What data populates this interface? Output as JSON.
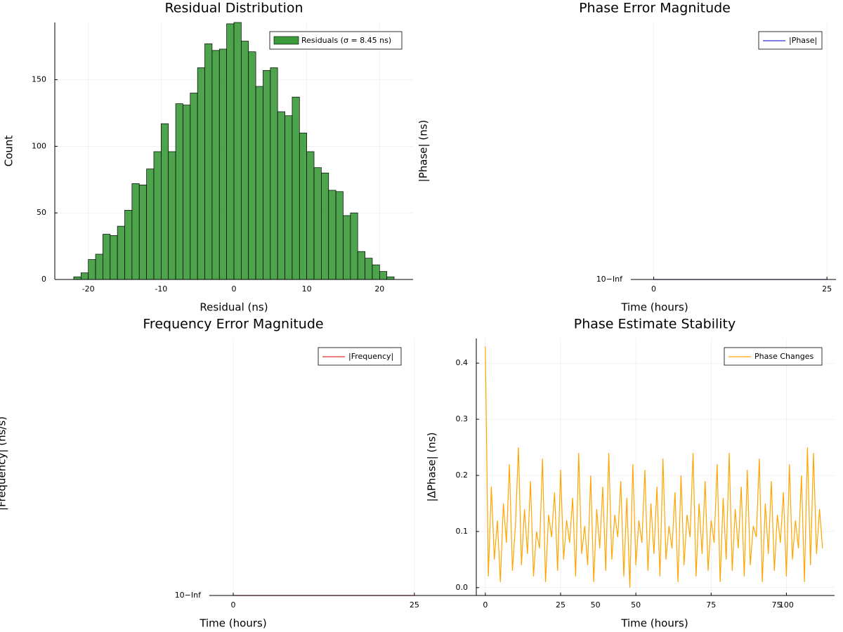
{
  "chart_data": [
    {
      "type": "histogram",
      "title": "Residual Distribution",
      "xlabel": "Residual (ns)",
      "ylabel": "Count",
      "label": "Residuals (σ = 8.45 ns)",
      "color": "#3a9a3a",
      "bins": [
        -22,
        -21,
        -20,
        -19,
        -18,
        -17,
        -16,
        -15,
        -14,
        -13,
        -12,
        -11,
        -10,
        -9,
        -8,
        -7,
        -6,
        -5,
        -4,
        -3,
        -2,
        -1,
        0,
        1,
        2,
        3,
        4,
        5,
        6,
        7,
        8,
        9,
        10,
        11,
        12,
        13,
        14,
        15,
        16,
        17,
        18,
        19,
        20,
        21,
        22
      ],
      "counts": [
        2,
        5,
        15,
        19,
        34,
        33,
        40,
        52,
        72,
        71,
        83,
        96,
        117,
        96,
        132,
        131,
        140,
        159,
        177,
        172,
        173,
        192,
        193,
        179,
        171,
        145,
        157,
        159,
        126,
        123,
        137,
        110,
        96,
        84,
        80,
        67,
        66,
        48,
        50,
        21,
        16,
        11,
        6,
        2
      ],
      "xlim": [
        -24.6,
        24.6
      ],
      "xticks": [
        -20,
        -10,
        0,
        10,
        20
      ],
      "ylim": [
        0,
        193
      ],
      "yticks": [
        0,
        50,
        100,
        150
      ],
      "grid": true
    },
    {
      "type": "line",
      "title": "Phase Error Magnitude",
      "xlabel": "Time (hours)",
      "ylabel": "|Phase| (ns)",
      "yscale": "log",
      "series": [
        {
          "name": "|Phase|",
          "color": "#3030d0",
          "x": [
            0,
            25
          ],
          "values": [
            0,
            0
          ]
        }
      ],
      "xlim": [
        -3.3,
        26.3
      ],
      "xticks": [
        0,
        25
      ],
      "yticks": [
        {
          "value": 0,
          "label": "10−Inf"
        }
      ],
      "grid": true
    },
    {
      "type": "line",
      "title": "Frequency Error Magnitude",
      "xlabel": "Time (hours)",
      "ylabel": "|Frequency| (ns/s)",
      "yscale": "log",
      "series": [
        {
          "name": "|Frequency|",
          "color": "#e03030",
          "x": [
            0,
            25
          ],
          "values": [
            0,
            0
          ]
        }
      ],
      "xlim": [
        -3.3,
        83
      ],
      "xticks": [
        0,
        25,
        50,
        75
      ],
      "yticks": [
        {
          "value": 0,
          "label": "10−Inf"
        }
      ],
      "grid": true
    },
    {
      "type": "line",
      "title": "Phase Estimate Stability",
      "xlabel": "Time (hours)",
      "ylabel": "|ΔPhase| (ns)",
      "series": [
        {
          "name": "Phase Changes",
          "color": "#ffa500",
          "x": [
            0,
            1,
            2,
            3,
            4,
            5,
            6,
            7,
            8,
            9,
            10,
            11,
            12,
            13,
            14,
            15,
            16,
            17,
            18,
            19,
            20,
            21,
            22,
            23,
            24,
            25,
            26,
            27,
            28,
            29,
            30,
            31,
            32,
            33,
            34,
            35,
            36,
            37,
            38,
            39,
            40,
            41,
            42,
            43,
            44,
            45,
            46,
            47,
            48,
            49,
            50,
            51,
            52,
            53,
            54,
            55,
            56,
            57,
            58,
            59,
            60,
            61,
            62,
            63,
            64,
            65,
            66,
            67,
            68,
            69,
            70,
            71,
            72,
            73,
            74,
            75,
            76,
            77,
            78,
            79,
            80,
            81,
            82,
            83,
            84,
            85,
            86,
            87,
            88,
            89,
            90,
            91,
            92,
            93,
            94,
            95,
            96,
            97,
            98,
            99,
            100,
            101,
            102,
            103,
            104,
            105,
            106,
            107,
            108,
            109,
            110,
            111,
            112
          ],
          "values": [
            0.43,
            0.02,
            0.18,
            0.05,
            0.12,
            0.01,
            0.15,
            0.08,
            0.22,
            0.03,
            0.11,
            0.25,
            0.04,
            0.14,
            0.06,
            0.19,
            0.02,
            0.1,
            0.07,
            0.23,
            0.01,
            0.13,
            0.09,
            0.17,
            0.03,
            0.21,
            0.05,
            0.12,
            0.08,
            0.16,
            0.02,
            0.24,
            0.06,
            0.11,
            0.04,
            0.2,
            0.01,
            0.14,
            0.07,
            0.18,
            0.03,
            0.24,
            0.05,
            0.13,
            0.09,
            0.19,
            0.02,
            0.16,
            0.0,
            0.22,
            0.04,
            0.12,
            0.08,
            0.21,
            0.03,
            0.15,
            0.06,
            0.18,
            0.02,
            0.23,
            0.05,
            0.11,
            0.07,
            0.17,
            0.01,
            0.2,
            0.04,
            0.13,
            0.09,
            0.24,
            0.02,
            0.15,
            0.06,
            0.19,
            0.03,
            0.12,
            0.08,
            0.22,
            0.01,
            0.16,
            0.05,
            0.24,
            0.03,
            0.14,
            0.07,
            0.18,
            0.02,
            0.21,
            0.04,
            0.11,
            0.09,
            0.23,
            0.01,
            0.15,
            0.06,
            0.19,
            0.03,
            0.13,
            0.08,
            0.17,
            0.02,
            0.22,
            0.05,
            0.12,
            0.07,
            0.2,
            0.01,
            0.25,
            0.04,
            0.24,
            0.06,
            0.14,
            0.07
          ]
        }
      ],
      "xlim": [
        -3,
        116
      ],
      "xticks": [
        0,
        25,
        50,
        75,
        100
      ],
      "ylim": [
        -0.014,
        0.444
      ],
      "yticks": [
        {
          "value": 0,
          "label": "0.0"
        },
        0.1,
        0.2,
        0.3,
        0.4
      ],
      "grid": true
    }
  ]
}
